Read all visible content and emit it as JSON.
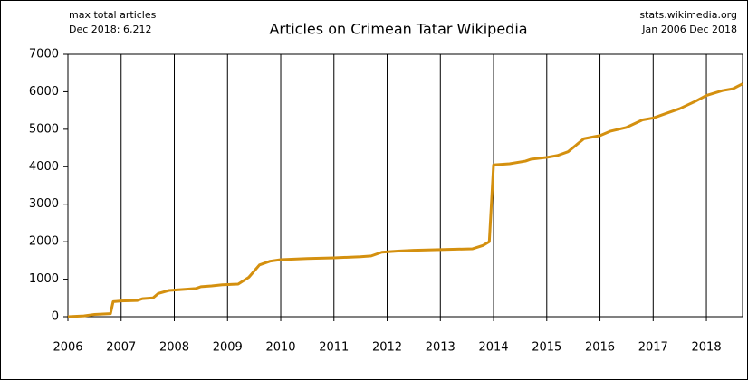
{
  "chart_data": {
    "type": "line",
    "title": "Articles on Crimean Tatar Wikipedia",
    "annotations": [
      "max total articles",
      "Dec 2018: 6,212",
      "stats.wikimedia.org",
      "Jan 2006 Dec 2018"
    ],
    "x": [
      2006.0,
      2006.3,
      2006.5,
      2006.8,
      2006.85,
      2007.0,
      2007.3,
      2007.4,
      2007.6,
      2007.7,
      2007.9,
      2008.2,
      2008.4,
      2008.5,
      2008.7,
      2008.9,
      2009.2,
      2009.4,
      2009.6,
      2009.8,
      2010.0,
      2010.5,
      2011.0,
      2011.5,
      2011.7,
      2011.9,
      2012.2,
      2012.5,
      2013.0,
      2013.6,
      2013.8,
      2013.92,
      2014.0,
      2014.3,
      2014.6,
      2014.7,
      2015.0,
      2015.2,
      2015.4,
      2015.7,
      2016.0,
      2016.2,
      2016.5,
      2016.8,
      2017.0,
      2017.3,
      2017.5,
      2017.8,
      2018.0,
      2018.3,
      2018.5,
      2018.68
    ],
    "series": [
      {
        "color": "#d4900f",
        "values": [
          0,
          20,
          60,
          80,
          400,
          420,
          430,
          480,
          500,
          620,
          700,
          730,
          750,
          800,
          820,
          850,
          870,
          1050,
          1380,
          1480,
          1520,
          1550,
          1570,
          1600,
          1620,
          1720,
          1750,
          1770,
          1790,
          1810,
          1900,
          2000,
          4050,
          4080,
          4150,
          4200,
          4250,
          4300,
          4400,
          4750,
          4830,
          4950,
          5050,
          5250,
          5300,
          5450,
          5550,
          5750,
          5900,
          6030,
          6080,
          6212
        ]
      }
    ],
    "xlim": [
      2006,
      2018.68
    ],
    "xticks": [
      2006,
      2007,
      2008,
      2009,
      2010,
      2011,
      2012,
      2013,
      2014,
      2015,
      2016,
      2017,
      2018
    ],
    "ylim": [
      0,
      7000
    ],
    "yticks": [
      0,
      1000,
      2000,
      3000,
      4000,
      5000,
      6000,
      7000
    ],
    "grid": true
  }
}
